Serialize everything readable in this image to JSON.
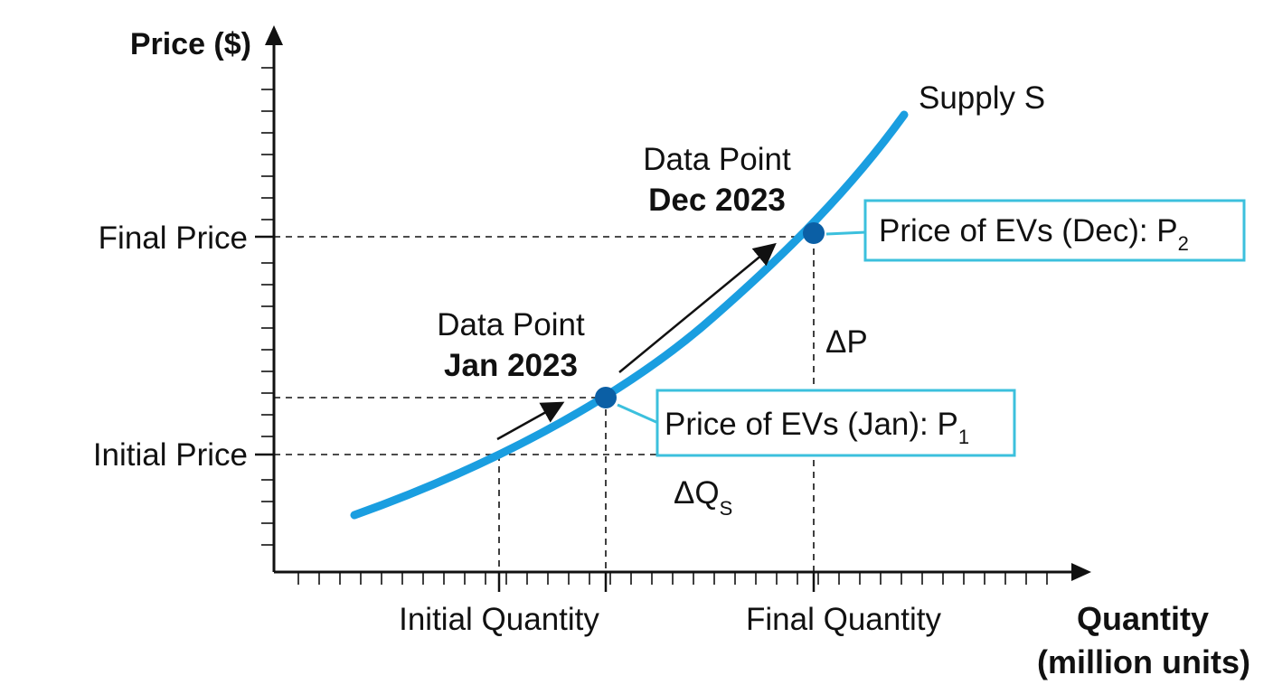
{
  "axes": {
    "y_label": "Price ($)",
    "x_label_line1": "Quantity",
    "x_label_line2": "(million units)"
  },
  "y_tick_labels": {
    "final": "Final Price",
    "initial": "Initial Price"
  },
  "x_tick_labels": {
    "initial": "Initial Quantity",
    "final": "Final Quantity"
  },
  "curve": {
    "label": "Supply S",
    "color": "#1a9ee0"
  },
  "points": {
    "jan": {
      "line1": "Data Point",
      "line2": "Jan 2023",
      "callout": "Price of EVs (Jan): P",
      "sub": "1"
    },
    "dec": {
      "line1": "Data Point",
      "line2": "Dec 2023",
      "callout": "Price of EVs (Dec): P",
      "sub": "2"
    }
  },
  "deltas": {
    "price": "ΔP",
    "quantity": "ΔQ",
    "quantity_sub": "S"
  },
  "colors": {
    "point": "#0b5fa5",
    "callout_border": "#3cc0dd"
  }
}
